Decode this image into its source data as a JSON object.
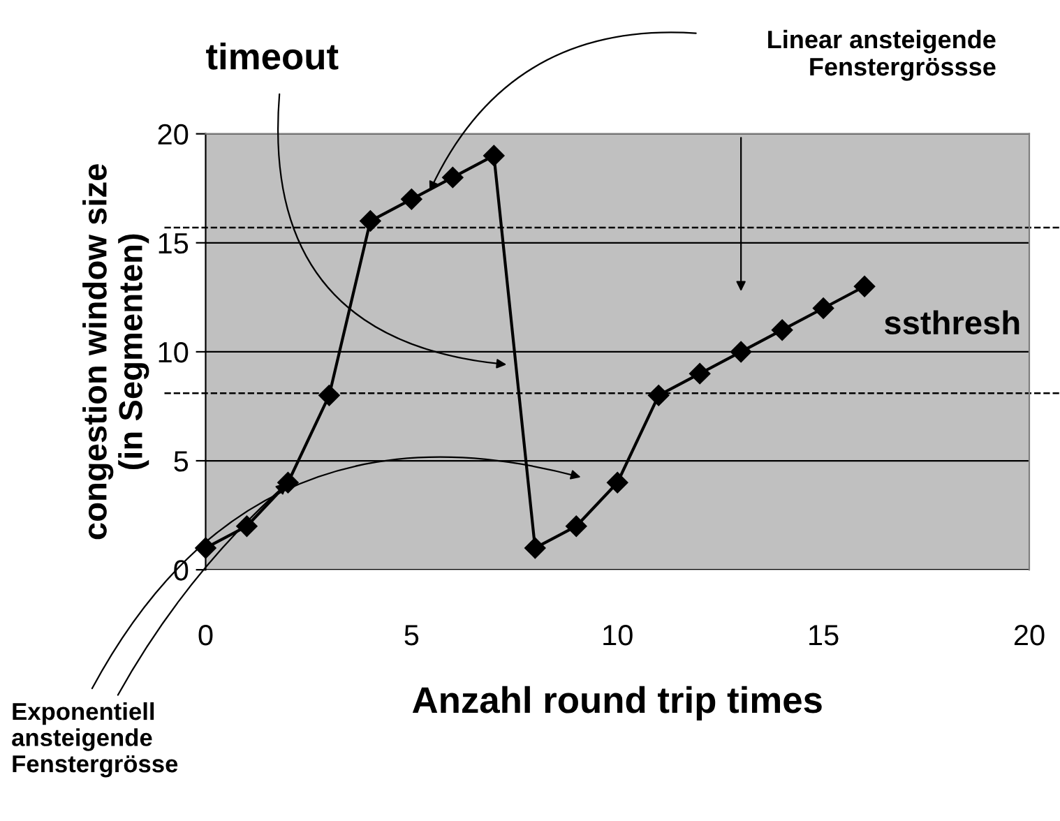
{
  "chart_data": {
    "type": "line",
    "xlabel": "Anzahl round trip times",
    "ylabel": "congestion window size\n(in Segmenten)",
    "x": [
      0,
      1,
      2,
      3,
      4,
      5,
      6,
      7,
      8,
      9,
      10,
      11,
      12,
      13,
      14,
      15,
      16
    ],
    "series": [
      {
        "color": "#000000",
        "values": [
          1,
          2,
          4,
          8,
          16,
          17,
          18,
          19,
          1,
          2,
          4,
          8,
          9,
          10,
          11,
          12,
          13
        ]
      }
    ],
    "marker": "diamond",
    "line_style": "solid",
    "xlim": [
      0,
      20
    ],
    "xticks": [
      0,
      5,
      10,
      15,
      20
    ],
    "ylim": [
      0,
      20
    ],
    "yticks": [
      0,
      5,
      10,
      15,
      20
    ],
    "grid": "y",
    "ref_lines": [
      {
        "axis": "y",
        "value": 15.7,
        "line_style": "dashed",
        "color": "#000000"
      },
      {
        "axis": "y",
        "value": 8.1,
        "line_style": "dashed",
        "color": "#000000"
      }
    ],
    "annotations": [
      "timeout",
      "Linear ansteigende\nFenstergrössse",
      {
        "text": "Exponentiell\nansteigende\nFenstergrösse",
        "x": 2,
        "y": 4
      },
      "ssthresh"
    ]
  }
}
